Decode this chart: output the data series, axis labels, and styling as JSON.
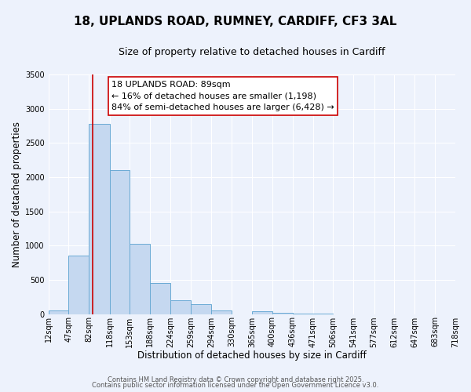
{
  "title": "18, UPLANDS ROAD, RUMNEY, CARDIFF, CF3 3AL",
  "subtitle": "Size of property relative to detached houses in Cardiff",
  "xlabel": "Distribution of detached houses by size in Cardiff",
  "ylabel": "Number of detached properties",
  "bar_edges": [
    12,
    47,
    82,
    118,
    153,
    188,
    224,
    259,
    294,
    330,
    365,
    400,
    436,
    471,
    506,
    541,
    577,
    612,
    647,
    683,
    718
  ],
  "bar_heights": [
    50,
    850,
    2780,
    2100,
    1030,
    450,
    200,
    140,
    50,
    0,
    40,
    20,
    3,
    1,
    0,
    0,
    0,
    0,
    0,
    0
  ],
  "bar_color": "#c5d8f0",
  "bar_edge_color": "#6aaad4",
  "bar_linewidth": 0.7,
  "vline_x": 89,
  "vline_color": "#cc0000",
  "vline_linewidth": 1.2,
  "annotation_title": "18 UPLANDS ROAD: 89sqm",
  "annotation_line2": "← 16% of detached houses are smaller (1,198)",
  "annotation_line3": "84% of semi-detached houses are larger (6,428) →",
  "annotation_box_facecolor": "#ffffff",
  "annotation_box_edgecolor": "#cc0000",
  "ylim": [
    0,
    3500
  ],
  "yticks": [
    0,
    500,
    1000,
    1500,
    2000,
    2500,
    3000,
    3500
  ],
  "tick_labels": [
    "12sqm",
    "47sqm",
    "82sqm",
    "118sqm",
    "153sqm",
    "188sqm",
    "224sqm",
    "259sqm",
    "294sqm",
    "330sqm",
    "365sqm",
    "400sqm",
    "436sqm",
    "471sqm",
    "506sqm",
    "541sqm",
    "577sqm",
    "612sqm",
    "647sqm",
    "683sqm",
    "718sqm"
  ],
  "background_color": "#edf2fc",
  "grid_color": "#ffffff",
  "footer_line1": "Contains HM Land Registry data © Crown copyright and database right 2025.",
  "footer_line2": "Contains public sector information licensed under the Open Government Licence v3.0.",
  "title_fontsize": 11,
  "subtitle_fontsize": 9,
  "axis_label_fontsize": 8.5,
  "tick_fontsize": 7,
  "annotation_fontsize": 8,
  "footer_fontsize": 6
}
